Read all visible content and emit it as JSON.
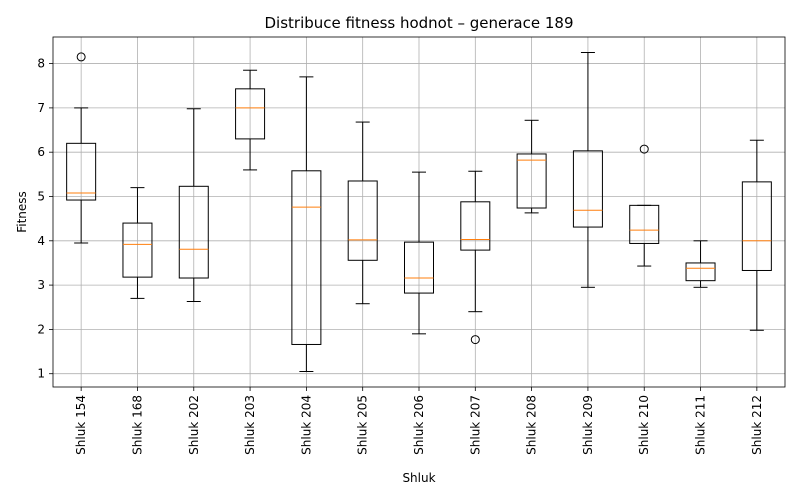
{
  "chart_data": {
    "type": "boxplot",
    "title": "Distribuce fitness hodnot – generace 189",
    "xlabel": "Shluk",
    "ylabel": "Fitness",
    "ylim": [
      0.7,
      8.6
    ],
    "yticks": [
      1,
      2,
      3,
      4,
      5,
      6,
      7,
      8
    ],
    "grid": true,
    "colors": {
      "box": "#000000",
      "median": "#ff7f0e",
      "grid": "#b0b0b0"
    },
    "categories": [
      "Shluk 154",
      "Shluk 168",
      "Shluk 202",
      "Shluk 203",
      "Shluk 204",
      "Shluk 205",
      "Shluk 206",
      "Shluk 207",
      "Shluk 208",
      "Shluk 209",
      "Shluk 210",
      "Shluk 211",
      "Shluk 212"
    ],
    "boxes": [
      {
        "whislo": 3.95,
        "q1": 4.92,
        "med": 5.08,
        "q3": 6.2,
        "whishi": 7.0,
        "fliers": [
          8.15
        ]
      },
      {
        "whislo": 2.7,
        "q1": 3.18,
        "med": 3.92,
        "q3": 4.4,
        "whishi": 5.2,
        "fliers": []
      },
      {
        "whislo": 2.63,
        "q1": 3.16,
        "med": 3.81,
        "q3": 5.23,
        "whishi": 6.98,
        "fliers": []
      },
      {
        "whislo": 5.6,
        "q1": 6.3,
        "med": 7.0,
        "q3": 7.43,
        "whishi": 7.85,
        "fliers": []
      },
      {
        "whislo": 1.05,
        "q1": 1.66,
        "med": 4.76,
        "q3": 5.58,
        "whishi": 7.7,
        "fliers": []
      },
      {
        "whislo": 2.58,
        "q1": 3.56,
        "med": 4.02,
        "q3": 5.35,
        "whishi": 6.68,
        "fliers": []
      },
      {
        "whislo": 1.9,
        "q1": 2.82,
        "med": 3.16,
        "q3": 3.97,
        "whishi": 5.55,
        "fliers": []
      },
      {
        "whislo": 2.4,
        "q1": 3.79,
        "med": 4.03,
        "q3": 4.88,
        "whishi": 5.57,
        "fliers": [
          1.77
        ]
      },
      {
        "whislo": 4.63,
        "q1": 4.74,
        "med": 5.82,
        "q3": 5.96,
        "whishi": 6.72,
        "fliers": []
      },
      {
        "whislo": 2.95,
        "q1": 4.31,
        "med": 4.69,
        "q3": 6.03,
        "whishi": 8.25,
        "fliers": []
      },
      {
        "whislo": 3.43,
        "q1": 3.94,
        "med": 4.24,
        "q3": 4.8,
        "whishi": 4.8,
        "fliers": [
          6.07
        ]
      },
      {
        "whislo": 2.95,
        "q1": 3.1,
        "med": 3.38,
        "q3": 3.5,
        "whishi": 4.0,
        "fliers": []
      },
      {
        "whislo": 1.98,
        "q1": 3.33,
        "med": 4.0,
        "q3": 5.33,
        "whishi": 6.27,
        "fliers": []
      }
    ]
  }
}
